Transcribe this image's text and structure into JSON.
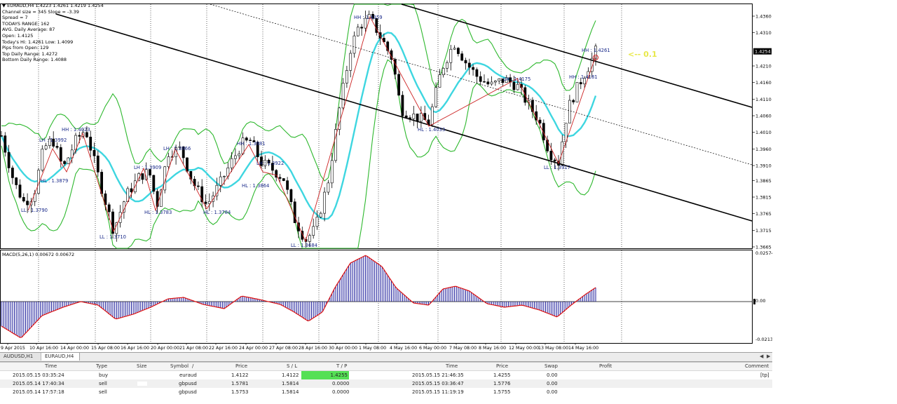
{
  "info": {
    "title": "EURAUD,H4  1.4223 1.4261 1.4219 1.4254",
    "lines": [
      "Channel size = 345 Slope = -3.39",
      "Spread = 7",
      "TODAYS RANGE: 162",
      "AVG. Daily Average: 87",
      "Open: 1.4125",
      "Today's Hi: 1.4261  Low: 1.4099",
      "Pips from Open: 129",
      "Top Daily Range: 1.4272",
      "Bottom Daily Range: 1.4088"
    ]
  },
  "price_axis": {
    "ticks": [
      "1.4360",
      "1.4310",
      "1.4210",
      "1.4160",
      "1.4110",
      "1.4060",
      "1.4010",
      "1.3960",
      "1.3910",
      "1.3865",
      "1.3815",
      "1.3765",
      "1.3715",
      "1.3665"
    ],
    "current": "1.4254"
  },
  "macd": {
    "label": "MACD(5,26,1) 0.00672 0.00672",
    "ticks": [
      "0.02574",
      "0.00",
      "-0.0213"
    ]
  },
  "time_axis": [
    "9 Apr 2015",
    "10 Apr 16:00",
    "14 Apr 00:00",
    "15 Apr 08:00",
    "16 Apr 16:00",
    "20 Apr 00:00",
    "21 Apr 08:00",
    "22 Apr 16:00",
    "24 Apr 00:00",
    "27 Apr 08:00",
    "28 Apr 16:00",
    "30 Apr 00:00",
    "1 May 08:00",
    "4 May 16:00",
    "6 May 00:00",
    "7 May 08:00",
    "8 May 16:00",
    "12 May 00:00",
    "13 May 08:00",
    "14 May 16:00"
  ],
  "swings": [
    {
      "text": "HH : 1.4359"
    },
    {
      "text": "HH : 1.4261"
    },
    {
      "text": "LH : 1.4175"
    },
    {
      "text": "HH : 1.4181"
    },
    {
      "text": "HL : 1.4033"
    },
    {
      "text": "LL : 1.3917"
    },
    {
      "text": "HH : 1.4023"
    },
    {
      "text": "LH : 1.3992"
    },
    {
      "text": "HL : 1.3879"
    },
    {
      "text": "LL : 1.3790"
    },
    {
      "text": "LL : 1.3710"
    },
    {
      "text": "LH : 1.3909"
    },
    {
      "text": "HL : 1.3783"
    },
    {
      "text": "LH : 1.3966"
    },
    {
      "text": "HL : 1.3784"
    },
    {
      "text": "HH : 1.3981"
    },
    {
      "text": "LH : 1.3922"
    },
    {
      "text": "HL : 1.3864"
    },
    {
      "text": "LL : 1.3684"
    }
  ],
  "annotation": "<-- 0.1",
  "tabs": [
    {
      "label": "AUDUSD,H1"
    },
    {
      "label": "EURAUD,H4"
    }
  ],
  "orders": {
    "headers": {
      "time": "Time",
      "type": "Type",
      "size": "Size",
      "symbol": "Symbol",
      "sort": "/",
      "price": "Price",
      "sl": "S / L",
      "tp": "T / P",
      "time2": "Time",
      "price2": "Price",
      "swap": "Swap",
      "profit": "Profit",
      "comment": "Comment"
    },
    "rows": [
      {
        "time": "2015.05.15 03:35:24",
        "type": "buy",
        "symbol": "euraud",
        "price": "1.4122",
        "sl": "1.4122",
        "tp": "1.4255",
        "time2": "2015.05.15 21:46:35",
        "price2": "1.4255",
        "swap": "0.00",
        "comment": "[tp]"
      },
      {
        "time": "2015.05.14 17:40:34",
        "type": "sell",
        "symbol": "gbpusd",
        "price": "1.5781",
        "sl": "1.5814",
        "tp": "0.0000",
        "time2": "2015.05.15 03:36:47",
        "price2": "1.5776",
        "swap": "0.00",
        "comment": ""
      },
      {
        "time": "2015.05.14 17:57:18",
        "type": "sell",
        "symbol": "gbpusd",
        "price": "1.5753",
        "sl": "1.5814",
        "tp": "0.0000",
        "time2": "2015.05.15 11:19:19",
        "price2": "1.5755",
        "swap": "0.00",
        "comment": ""
      }
    ]
  },
  "colors": {
    "candle": "#000000",
    "bollinger": "#2db82d",
    "ma": "#3ed6e0",
    "channel": "#000000",
    "zigzag": "#cc2222",
    "swing_label": "#1a2a8a",
    "macd_hist": "#1a1a9a",
    "macd_signal": "#dd1111",
    "annotation": "#e8e84a",
    "tp_highlight": "#55e055"
  }
}
